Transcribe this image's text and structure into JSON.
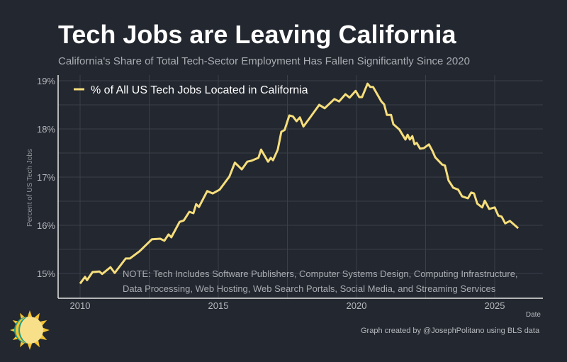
{
  "header": {
    "title": "Tech Jobs are Leaving California",
    "subtitle": "California's Share of Total Tech-Sector Employment Has Fallen Significantly Since 2020"
  },
  "footer": {
    "credit": "Graph created by @JosephPolitano using BLS data"
  },
  "colors": {
    "background": "#23272f",
    "line": "#f6de7c",
    "grid": "#3a3f48",
    "axis": "#e6e6e6"
  },
  "logo": {
    "icon": "sun-icon"
  },
  "chart_data": {
    "type": "line",
    "title": "Tech Jobs are Leaving California",
    "subtitle": "California's Share of Total Tech-Sector Employment Has Fallen Significantly Since 2020",
    "xlabel": "Date",
    "ylabel": "Percent of US Tech Jobs",
    "xlim": [
      2009.2,
      2026.7
    ],
    "ylim": [
      14.55,
      19.0
    ],
    "x_ticks": [
      2010,
      2015,
      2020,
      2025
    ],
    "x_tick_labels": [
      "2010",
      "2015",
      "2020",
      "2025"
    ],
    "y_ticks": [
      15,
      16,
      17,
      18,
      19
    ],
    "y_tick_labels": [
      "15%",
      "16%",
      "17%",
      "18%",
      "19%"
    ],
    "grid": true,
    "legend_position": "top-left",
    "annotation": [
      "NOTE: Tech Includes Software Publishers, Computer Systems Design, Computing Infrastructure,",
      "Data Processing, Web Hosting, Web Search Portals, Social Media, and Streaming Services"
    ],
    "series": [
      {
        "name": "% of All US Tech Jobs Located in California",
        "color": "#f6de7c",
        "x": [
          2010.0,
          2010.18,
          2010.25,
          2010.45,
          2010.7,
          2010.8,
          2011.1,
          2011.25,
          2011.65,
          2011.8,
          2012.15,
          2012.6,
          2012.9,
          2013.05,
          2013.2,
          2013.3,
          2013.6,
          2013.75,
          2013.95,
          2014.1,
          2014.2,
          2014.3,
          2014.6,
          2014.8,
          2015.05,
          2015.4,
          2015.6,
          2015.85,
          2016.05,
          2016.2,
          2016.45,
          2016.55,
          2016.8,
          2016.9,
          2016.98,
          2017.15,
          2017.28,
          2017.4,
          2017.57,
          2017.7,
          2017.83,
          2017.95,
          2018.08,
          2018.3,
          2018.65,
          2018.85,
          2019.2,
          2019.37,
          2019.6,
          2019.75,
          2019.97,
          2020.1,
          2020.2,
          2020.4,
          2020.5,
          2020.6,
          2020.9,
          2021.0,
          2021.1,
          2021.25,
          2021.33,
          2021.55,
          2021.77,
          2021.85,
          2021.93,
          2022.02,
          2022.1,
          2022.18,
          2022.3,
          2022.43,
          2022.62,
          2022.75,
          2022.85,
          2023.1,
          2023.2,
          2023.33,
          2023.5,
          2023.68,
          2023.82,
          2024.03,
          2024.15,
          2024.25,
          2024.37,
          2024.55,
          2024.64,
          2024.8,
          2025.0,
          2025.13,
          2025.25,
          2025.38,
          2025.55,
          2025.85
        ],
        "y": [
          14.79,
          14.93,
          14.86,
          15.03,
          15.04,
          14.99,
          15.13,
          15.01,
          15.31,
          15.31,
          15.46,
          15.71,
          15.72,
          15.68,
          15.81,
          15.75,
          16.07,
          16.1,
          16.28,
          16.25,
          16.44,
          16.38,
          16.71,
          16.66,
          16.74,
          17.01,
          17.3,
          17.16,
          17.32,
          17.34,
          17.4,
          17.57,
          17.32,
          17.4,
          17.35,
          17.57,
          17.94,
          17.98,
          18.28,
          18.26,
          18.16,
          18.24,
          18.05,
          18.22,
          18.5,
          18.43,
          18.62,
          18.57,
          18.72,
          18.65,
          18.79,
          18.66,
          18.66,
          18.94,
          18.87,
          18.87,
          18.57,
          18.51,
          18.29,
          18.29,
          18.1,
          17.99,
          17.78,
          17.88,
          17.78,
          17.85,
          17.68,
          17.71,
          17.59,
          17.6,
          17.68,
          17.54,
          17.41,
          17.26,
          17.24,
          16.93,
          16.78,
          16.74,
          16.6,
          16.56,
          16.68,
          16.66,
          16.45,
          16.37,
          16.51,
          16.34,
          16.37,
          16.2,
          16.18,
          16.04,
          16.09,
          15.94
        ]
      }
    ]
  }
}
